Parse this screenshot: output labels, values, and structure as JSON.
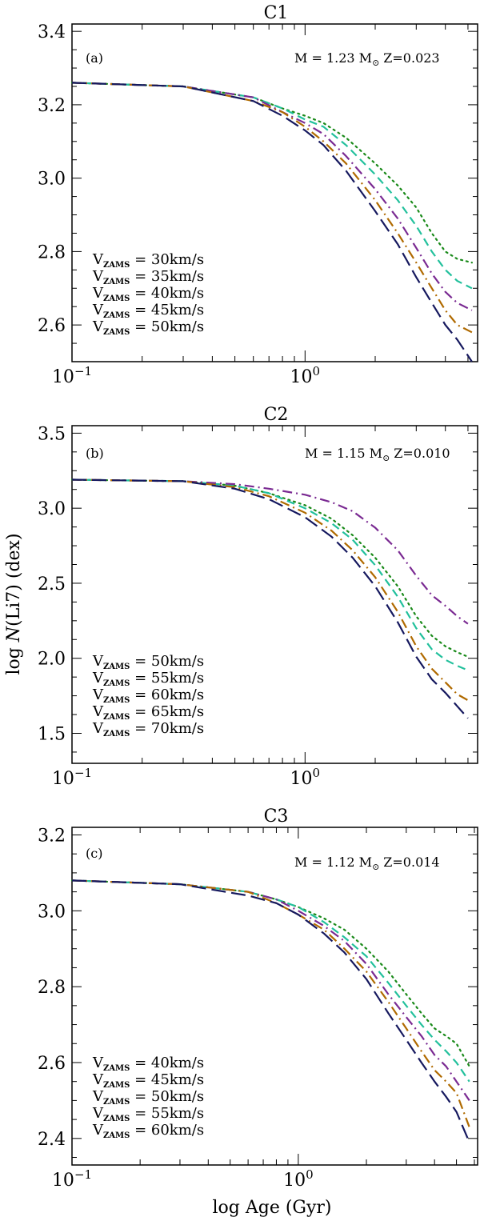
{
  "chart_data": [
    {
      "type": "line",
      "title": "C1",
      "panel": "(a)",
      "info": {
        "mass": "M = 1.23 M",
        "sun": "⊙",
        "metal": "Z=0.023"
      },
      "xscale": "log",
      "xlim": [
        0.1,
        5.5
      ],
      "ylim": [
        2.5,
        3.42
      ],
      "xticks": [
        {
          "v": 0.1,
          "base": "10",
          "exp": "−1"
        },
        {
          "v": 1,
          "base": "10",
          "exp": "0"
        }
      ],
      "yticks": [
        2.6,
        2.8,
        3.0,
        3.2,
        3.4
      ],
      "legend_position": "bottom-left",
      "series": [
        {
          "name": "V_ZAMS = 30km/s",
          "lab": "V",
          "sub": "ZAMS",
          "val": " = 30km/s",
          "color": "#1a8a1a",
          "dash": "dot",
          "x": [
            0.1,
            0.3,
            0.6,
            0.8,
            1.0,
            1.2,
            1.5,
            2.0,
            2.5,
            3.0,
            3.5,
            4.0,
            4.5,
            5.2
          ],
          "y": [
            3.26,
            3.25,
            3.22,
            3.19,
            3.17,
            3.15,
            3.11,
            3.04,
            2.98,
            2.92,
            2.85,
            2.8,
            2.78,
            2.77
          ]
        },
        {
          "name": "V_ZAMS = 35km/s",
          "lab": "V",
          "sub": "ZAMS",
          "val": " = 35km/s",
          "color": "#22c09c",
          "dash": "dash",
          "x": [
            0.1,
            0.3,
            0.6,
            0.8,
            1.0,
            1.2,
            1.5,
            2.0,
            2.5,
            3.0,
            3.5,
            4.0,
            4.5,
            5.2
          ],
          "y": [
            3.26,
            3.25,
            3.22,
            3.19,
            3.16,
            3.14,
            3.09,
            3.01,
            2.94,
            2.87,
            2.8,
            2.75,
            2.72,
            2.7
          ]
        },
        {
          "name": "V_ZAMS = 40km/s",
          "lab": "V",
          "sub": "ZAMS",
          "val": " = 40km/s",
          "color": "#7a2a92",
          "dash": "dashdot",
          "x": [
            0.1,
            0.3,
            0.6,
            0.8,
            1.0,
            1.2,
            1.5,
            2.0,
            2.5,
            3.0,
            3.5,
            4.0,
            4.5,
            5.2
          ],
          "y": [
            3.26,
            3.25,
            3.22,
            3.18,
            3.15,
            3.12,
            3.06,
            2.97,
            2.89,
            2.81,
            2.74,
            2.69,
            2.66,
            2.64
          ]
        },
        {
          "name": "V_ZAMS = 45km/s",
          "lab": "V",
          "sub": "ZAMS",
          "val": " = 45km/s",
          "color": "#b06a00",
          "dash": "dashdot",
          "x": [
            0.1,
            0.3,
            0.6,
            0.8,
            1.0,
            1.2,
            1.5,
            2.0,
            2.5,
            3.0,
            3.5,
            4.0,
            4.5,
            5.2
          ],
          "y": [
            3.26,
            3.25,
            3.21,
            3.18,
            3.14,
            3.1,
            3.04,
            2.94,
            2.85,
            2.77,
            2.7,
            2.64,
            2.6,
            2.58
          ]
        },
        {
          "name": "V_ZAMS = 50km/s",
          "lab": "V",
          "sub": "ZAMS",
          "val": " = 50km/s",
          "color": "#15185e",
          "dash": "longdash",
          "x": [
            0.1,
            0.3,
            0.6,
            0.8,
            1.0,
            1.2,
            1.5,
            2.0,
            2.5,
            3.0,
            3.5,
            4.0,
            4.5,
            5.2
          ],
          "y": [
            3.26,
            3.25,
            3.21,
            3.17,
            3.13,
            3.09,
            3.02,
            2.91,
            2.82,
            2.73,
            2.66,
            2.6,
            2.56,
            2.5
          ]
        }
      ]
    },
    {
      "type": "line",
      "title": "C2",
      "panel": "(b)",
      "info": {
        "mass": "M = 1.15 M",
        "sun": "⊙",
        "metal": "Z=0.010"
      },
      "xscale": "log",
      "xlim": [
        0.1,
        5.5
      ],
      "ylim": [
        1.3,
        3.55
      ],
      "xticks": [
        {
          "v": 0.1,
          "base": "10",
          "exp": "−1"
        },
        {
          "v": 1,
          "base": "10",
          "exp": "0"
        }
      ],
      "yticks": [
        1.5,
        2.0,
        2.5,
        3.0,
        3.5
      ],
      "ylabel": "log N(Li7) (dex)",
      "legend_position": "bottom-left",
      "series": [
        {
          "name": "V_ZAMS = 50km/s",
          "lab": "V",
          "sub": "ZAMS",
          "val": " = 50km/s",
          "color": "#1a8a1a",
          "dash": "dot",
          "x": [
            0.1,
            0.3,
            0.5,
            0.7,
            1.0,
            1.3,
            1.6,
            2.0,
            2.5,
            3.0,
            3.5,
            4.0,
            4.5,
            5.0
          ],
          "y": [
            3.19,
            3.18,
            3.15,
            3.1,
            3.02,
            2.93,
            2.82,
            2.67,
            2.48,
            2.28,
            2.15,
            2.08,
            2.04,
            2.01
          ]
        },
        {
          "name": "V_ZAMS = 55km/s",
          "lab": "V",
          "sub": "ZAMS",
          "val": " = 55km/s",
          "color": "#22c09c",
          "dash": "dash",
          "x": [
            0.1,
            0.3,
            0.5,
            0.7,
            1.0,
            1.3,
            1.6,
            2.0,
            2.5,
            3.0,
            3.5,
            4.0,
            4.5,
            5.0
          ],
          "y": [
            3.19,
            3.18,
            3.15,
            3.1,
            3.0,
            2.9,
            2.79,
            2.62,
            2.41,
            2.2,
            2.06,
            1.99,
            1.95,
            1.92
          ]
        },
        {
          "name": "V_ZAMS = 60km/s",
          "lab": "V",
          "sub": "ZAMS",
          "val": " = 60km/s",
          "color": "#7a2a92",
          "dash": "dashdot",
          "x": [
            0.1,
            0.3,
            0.5,
            0.7,
            1.0,
            1.3,
            1.6,
            2.0,
            2.5,
            3.0,
            3.5,
            4.0,
            4.5,
            5.0
          ],
          "y": [
            3.19,
            3.18,
            3.16,
            3.13,
            3.09,
            3.04,
            2.98,
            2.87,
            2.72,
            2.55,
            2.42,
            2.35,
            2.28,
            2.23
          ]
        },
        {
          "name": "V_ZAMS = 65km/s",
          "lab": "V",
          "sub": "ZAMS",
          "val": " = 65km/s",
          "color": "#b06a00",
          "dash": "dashdot",
          "x": [
            0.1,
            0.3,
            0.5,
            0.7,
            1.0,
            1.3,
            1.6,
            2.0,
            2.5,
            3.0,
            3.5,
            4.0,
            4.5,
            5.0
          ],
          "y": [
            3.19,
            3.18,
            3.14,
            3.08,
            2.97,
            2.85,
            2.72,
            2.54,
            2.31,
            2.08,
            1.93,
            1.84,
            1.76,
            1.72
          ]
        },
        {
          "name": "V_ZAMS = 70km/s",
          "lab": "V",
          "sub": "ZAMS",
          "val": " = 70km/s",
          "color": "#15185e",
          "dash": "longdash",
          "x": [
            0.1,
            0.3,
            0.5,
            0.7,
            1.0,
            1.3,
            1.6,
            2.0,
            2.5,
            3.0,
            3.5,
            4.0,
            4.5,
            5.0
          ],
          "y": [
            3.19,
            3.18,
            3.13,
            3.06,
            2.94,
            2.81,
            2.67,
            2.48,
            2.24,
            2.01,
            1.86,
            1.77,
            1.68,
            1.6
          ]
        }
      ]
    },
    {
      "type": "line",
      "title": "C3",
      "panel": "(c)",
      "info": {
        "mass": "M = 1.12 M",
        "sun": "⊙",
        "metal": "Z=0.014"
      },
      "xscale": "log",
      "xlim": [
        0.1,
        6.2
      ],
      "ylim": [
        2.33,
        3.22
      ],
      "xticks": [
        {
          "v": 0.1,
          "base": "10",
          "exp": "−1"
        },
        {
          "v": 1,
          "base": "10",
          "exp": "0"
        }
      ],
      "yticks": [
        2.4,
        2.6,
        2.8,
        3.0,
        3.2
      ],
      "xlabel": "log Age (Gyr)",
      "legend_position": "bottom-left",
      "series": [
        {
          "name": "V_ZAMS = 40km/s",
          "lab": "V",
          "sub": "ZAMS",
          "val": " = 40km/s",
          "color": "#1a8a1a",
          "dash": "dot",
          "x": [
            0.1,
            0.3,
            0.6,
            0.8,
            1.0,
            1.3,
            1.6,
            2.0,
            2.5,
            3.0,
            3.5,
            4.0,
            4.5,
            5.0,
            5.7
          ],
          "y": [
            3.08,
            3.07,
            3.05,
            3.03,
            3.01,
            2.98,
            2.95,
            2.9,
            2.84,
            2.78,
            2.73,
            2.69,
            2.67,
            2.65,
            2.59
          ]
        },
        {
          "name": "V_ZAMS = 45km/s",
          "lab": "V",
          "sub": "ZAMS",
          "val": " = 45km/s",
          "color": "#22c09c",
          "dash": "dash",
          "x": [
            0.1,
            0.3,
            0.6,
            0.8,
            1.0,
            1.3,
            1.6,
            2.0,
            2.5,
            3.0,
            3.5,
            4.0,
            4.5,
            5.0,
            5.7
          ],
          "y": [
            3.08,
            3.07,
            3.05,
            3.03,
            3.01,
            2.97,
            2.93,
            2.88,
            2.81,
            2.75,
            2.7,
            2.66,
            2.63,
            2.6,
            2.55
          ]
        },
        {
          "name": "V_ZAMS = 50km/s",
          "lab": "V",
          "sub": "ZAMS",
          "val": " = 50km/s",
          "color": "#7a2a92",
          "dash": "dashdot",
          "x": [
            0.1,
            0.3,
            0.6,
            0.8,
            1.0,
            1.3,
            1.6,
            2.0,
            2.5,
            3.0,
            3.5,
            4.0,
            4.5,
            5.0,
            5.7
          ],
          "y": [
            3.08,
            3.07,
            3.05,
            3.03,
            3.0,
            2.96,
            2.92,
            2.86,
            2.78,
            2.72,
            2.67,
            2.62,
            2.59,
            2.55,
            2.5
          ]
        },
        {
          "name": "V_ZAMS = 55km/s",
          "lab": "V",
          "sub": "ZAMS",
          "val": " = 55km/s",
          "color": "#b06a00",
          "dash": "dashdot",
          "x": [
            0.1,
            0.3,
            0.6,
            0.8,
            1.0,
            1.3,
            1.6,
            2.0,
            2.5,
            3.0,
            3.5,
            4.0,
            4.5,
            5.0,
            5.7
          ],
          "y": [
            3.08,
            3.07,
            3.05,
            3.02,
            2.99,
            2.95,
            2.9,
            2.84,
            2.76,
            2.69,
            2.63,
            2.58,
            2.55,
            2.52,
            2.43
          ]
        },
        {
          "name": "V_ZAMS = 60km/s",
          "lab": "V",
          "sub": "ZAMS",
          "val": " = 60km/s",
          "color": "#15185e",
          "dash": "longdash",
          "x": [
            0.1,
            0.3,
            0.6,
            0.8,
            1.0,
            1.3,
            1.6,
            2.0,
            2.5,
            3.0,
            3.5,
            4.0,
            4.5,
            5.0,
            5.7
          ],
          "y": [
            3.08,
            3.07,
            3.04,
            3.02,
            2.99,
            2.94,
            2.89,
            2.82,
            2.73,
            2.66,
            2.6,
            2.55,
            2.51,
            2.47,
            2.39
          ]
        }
      ]
    }
  ]
}
